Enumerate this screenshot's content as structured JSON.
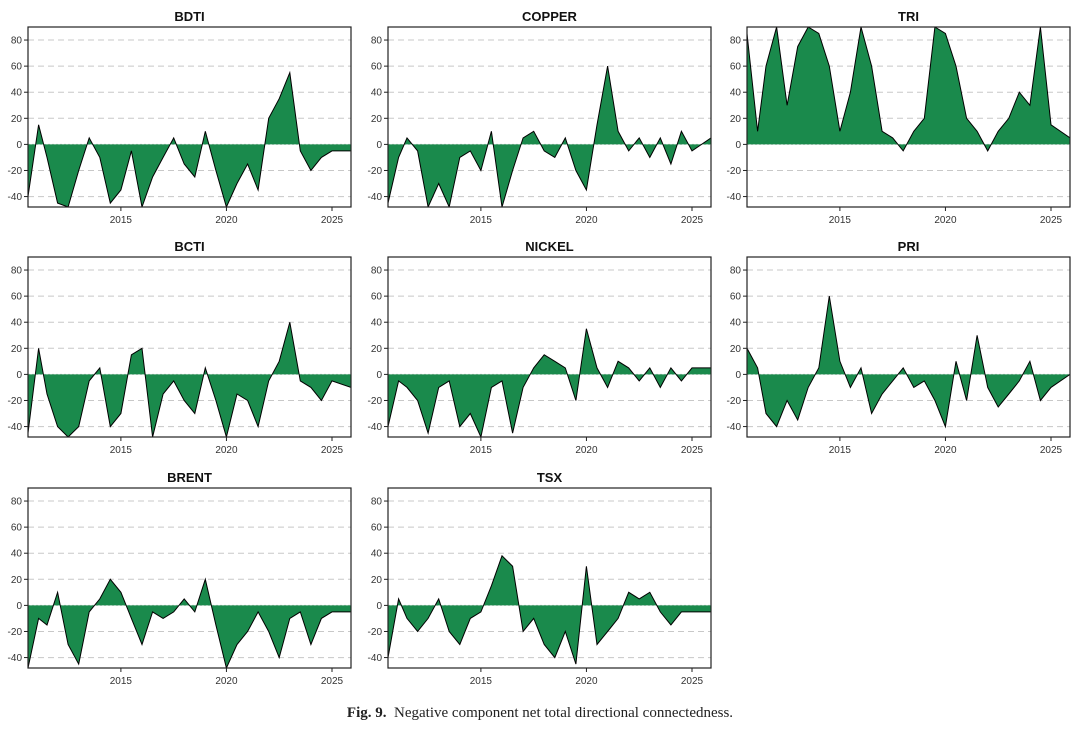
{
  "caption": {
    "label": "Fig. 9.",
    "text": "Negative component net total directional connectedness."
  },
  "colors": {
    "fill": "#1a8a4c",
    "line": "#000000",
    "grid": "#c8c8c8",
    "frame": "#222222"
  },
  "chart_data": [
    {
      "type": "area",
      "title": "BDTI",
      "ylim": [
        -48,
        90
      ],
      "xlim": [
        2010.6,
        2025.9
      ],
      "yticks": [
        -40,
        -20,
        0,
        20,
        40,
        60,
        80
      ],
      "xticks": [
        2015,
        2020,
        2025
      ],
      "grid": true,
      "x": [
        2010.6,
        2011.1,
        2011.5,
        2012.0,
        2012.5,
        2013.0,
        2013.5,
        2014.0,
        2014.5,
        2015.0,
        2015.5,
        2016.0,
        2016.5,
        2017.0,
        2017.5,
        2018.0,
        2018.5,
        2019.0,
        2019.5,
        2020.0,
        2020.5,
        2021.0,
        2021.5,
        2022.0,
        2022.5,
        2023.0,
        2023.5,
        2024.0,
        2024.5,
        2025.0,
        2025.9
      ],
      "y": [
        -40,
        15,
        -10,
        -45,
        -48,
        -20,
        5,
        -10,
        -45,
        -35,
        -5,
        -48,
        -25,
        -10,
        5,
        -15,
        -25,
        10,
        -20,
        -48,
        -30,
        -15,
        -35,
        20,
        35,
        55,
        -5,
        -20,
        -10,
        -5,
        -5
      ]
    },
    {
      "type": "area",
      "title": "COPPER",
      "ylim": [
        -48,
        90
      ],
      "xlim": [
        2010.6,
        2025.9
      ],
      "yticks": [
        -40,
        -20,
        0,
        20,
        40,
        60,
        80
      ],
      "xticks": [
        2015,
        2020,
        2025
      ],
      "grid": true,
      "x": [
        2010.6,
        2011.1,
        2011.5,
        2012.0,
        2012.5,
        2013.0,
        2013.5,
        2014.0,
        2014.5,
        2015.0,
        2015.5,
        2016.0,
        2016.5,
        2017.0,
        2017.5,
        2018.0,
        2018.5,
        2019.0,
        2019.5,
        2020.0,
        2020.5,
        2021.0,
        2021.5,
        2022.0,
        2022.5,
        2023.0,
        2023.5,
        2024.0,
        2024.5,
        2025.0,
        2025.9
      ],
      "y": [
        -45,
        -10,
        5,
        -5,
        -48,
        -30,
        -48,
        -10,
        -5,
        -20,
        10,
        -48,
        -20,
        5,
        10,
        -5,
        -10,
        5,
        -20,
        -35,
        15,
        60,
        10,
        -5,
        5,
        -10,
        5,
        -15,
        10,
        -5,
        5
      ]
    },
    {
      "type": "area",
      "title": "TRI",
      "ylim": [
        -48,
        90
      ],
      "xlim": [
        2010.6,
        2025.9
      ],
      "yticks": [
        -40,
        -20,
        0,
        20,
        40,
        60,
        80
      ],
      "xticks": [
        2015,
        2020,
        2025
      ],
      "grid": true,
      "x": [
        2010.6,
        2011.1,
        2011.5,
        2012.0,
        2012.5,
        2013.0,
        2013.5,
        2014.0,
        2014.5,
        2015.0,
        2015.5,
        2016.0,
        2016.5,
        2017.0,
        2017.5,
        2018.0,
        2018.5,
        2019.0,
        2019.5,
        2020.0,
        2020.5,
        2021.0,
        2021.5,
        2022.0,
        2022.5,
        2023.0,
        2023.5,
        2024.0,
        2024.5,
        2025.0,
        2025.9
      ],
      "y": [
        85,
        10,
        60,
        90,
        30,
        75,
        90,
        85,
        60,
        10,
        40,
        90,
        60,
        10,
        5,
        -5,
        10,
        20,
        90,
        85,
        60,
        20,
        10,
        -5,
        10,
        20,
        40,
        30,
        90,
        15,
        5
      ]
    },
    {
      "type": "area",
      "title": "BCTI",
      "ylim": [
        -48,
        90
      ],
      "xlim": [
        2010.6,
        2025.9
      ],
      "yticks": [
        -40,
        -20,
        0,
        20,
        40,
        60,
        80
      ],
      "xticks": [
        2015,
        2020,
        2025
      ],
      "grid": true,
      "x": [
        2010.6,
        2011.1,
        2011.5,
        2012.0,
        2012.5,
        2013.0,
        2013.5,
        2014.0,
        2014.5,
        2015.0,
        2015.5,
        2016.0,
        2016.5,
        2017.0,
        2017.5,
        2018.0,
        2018.5,
        2019.0,
        2019.5,
        2020.0,
        2020.5,
        2021.0,
        2021.5,
        2022.0,
        2022.5,
        2023.0,
        2023.5,
        2024.0,
        2024.5,
        2025.0,
        2025.9
      ],
      "y": [
        -45,
        20,
        -15,
        -40,
        -48,
        -40,
        -5,
        5,
        -40,
        -30,
        15,
        20,
        -48,
        -15,
        -5,
        -20,
        -30,
        5,
        -20,
        -48,
        -15,
        -20,
        -40,
        -5,
        10,
        40,
        -5,
        -10,
        -20,
        -5,
        -10
      ]
    },
    {
      "type": "area",
      "title": "NICKEL",
      "ylim": [
        -48,
        90
      ],
      "xlim": [
        2010.6,
        2025.9
      ],
      "yticks": [
        -40,
        -20,
        0,
        20,
        40,
        60,
        80
      ],
      "xticks": [
        2015,
        2020,
        2025
      ],
      "grid": true,
      "x": [
        2010.6,
        2011.1,
        2011.5,
        2012.0,
        2012.5,
        2013.0,
        2013.5,
        2014.0,
        2014.5,
        2015.0,
        2015.5,
        2016.0,
        2016.5,
        2017.0,
        2017.5,
        2018.0,
        2018.5,
        2019.0,
        2019.5,
        2020.0,
        2020.5,
        2021.0,
        2021.5,
        2022.0,
        2022.5,
        2023.0,
        2023.5,
        2024.0,
        2024.5,
        2025.0,
        2025.9
      ],
      "y": [
        -40,
        -5,
        -10,
        -20,
        -45,
        -10,
        -5,
        -40,
        -30,
        -48,
        -10,
        -5,
        -45,
        -10,
        5,
        15,
        10,
        5,
        -20,
        35,
        5,
        -10,
        10,
        5,
        -5,
        5,
        -10,
        5,
        -5,
        5,
        5
      ]
    },
    {
      "type": "area",
      "title": "PRI",
      "ylim": [
        -48,
        90
      ],
      "xlim": [
        2010.6,
        2025.9
      ],
      "yticks": [
        -40,
        -20,
        0,
        20,
        40,
        60,
        80
      ],
      "xticks": [
        2015,
        2020,
        2025
      ],
      "grid": true,
      "x": [
        2010.6,
        2011.1,
        2011.5,
        2012.0,
        2012.5,
        2013.0,
        2013.5,
        2014.0,
        2014.5,
        2015.0,
        2015.5,
        2016.0,
        2016.5,
        2017.0,
        2017.5,
        2018.0,
        2018.5,
        2019.0,
        2019.5,
        2020.0,
        2020.5,
        2021.0,
        2021.5,
        2022.0,
        2022.5,
        2023.0,
        2023.5,
        2024.0,
        2024.5,
        2025.0,
        2025.9
      ],
      "y": [
        20,
        5,
        -30,
        -40,
        -20,
        -35,
        -10,
        5,
        60,
        10,
        -10,
        5,
        -30,
        -15,
        -5,
        5,
        -10,
        -5,
        -20,
        -40,
        10,
        -20,
        30,
        -10,
        -25,
        -15,
        -5,
        10,
        -20,
        -10,
        0
      ]
    },
    {
      "type": "area",
      "title": "BRENT",
      "ylim": [
        -48,
        90
      ],
      "xlim": [
        2010.6,
        2025.9
      ],
      "yticks": [
        -40,
        -20,
        0,
        20,
        40,
        60,
        80
      ],
      "xticks": [
        2015,
        2020,
        2025
      ],
      "grid": true,
      "x": [
        2010.6,
        2011.1,
        2011.5,
        2012.0,
        2012.5,
        2013.0,
        2013.5,
        2014.0,
        2014.5,
        2015.0,
        2015.5,
        2016.0,
        2016.5,
        2017.0,
        2017.5,
        2018.0,
        2018.5,
        2019.0,
        2019.5,
        2020.0,
        2020.5,
        2021.0,
        2021.5,
        2022.0,
        2022.5,
        2023.0,
        2023.5,
        2024.0,
        2024.5,
        2025.0,
        2025.9
      ],
      "y": [
        -48,
        -10,
        -15,
        10,
        -30,
        -45,
        -5,
        5,
        20,
        10,
        -10,
        -30,
        -5,
        -10,
        -5,
        5,
        -5,
        20,
        -15,
        -48,
        -30,
        -20,
        -5,
        -20,
        -40,
        -10,
        -5,
        -30,
        -10,
        -5,
        -5
      ]
    },
    {
      "type": "area",
      "title": "TSX",
      "ylim": [
        -48,
        90
      ],
      "xlim": [
        2010.6,
        2025.9
      ],
      "yticks": [
        -40,
        -20,
        0,
        20,
        40,
        60,
        80
      ],
      "xticks": [
        2015,
        2020,
        2025
      ],
      "grid": true,
      "x": [
        2010.6,
        2011.1,
        2011.5,
        2012.0,
        2012.5,
        2013.0,
        2013.5,
        2014.0,
        2014.5,
        2015.0,
        2015.5,
        2016.0,
        2016.5,
        2017.0,
        2017.5,
        2018.0,
        2018.5,
        2019.0,
        2019.5,
        2020.0,
        2020.5,
        2021.0,
        2021.5,
        2022.0,
        2022.5,
        2023.0,
        2023.5,
        2024.0,
        2024.5,
        2025.0,
        2025.9
      ],
      "y": [
        -40,
        5,
        -10,
        -20,
        -10,
        5,
        -20,
        -30,
        -10,
        -5,
        15,
        38,
        30,
        -20,
        -10,
        -30,
        -40,
        -20,
        -45,
        30,
        -30,
        -20,
        -10,
        10,
        5,
        10,
        -5,
        -15,
        -5,
        -5,
        -5
      ]
    }
  ]
}
